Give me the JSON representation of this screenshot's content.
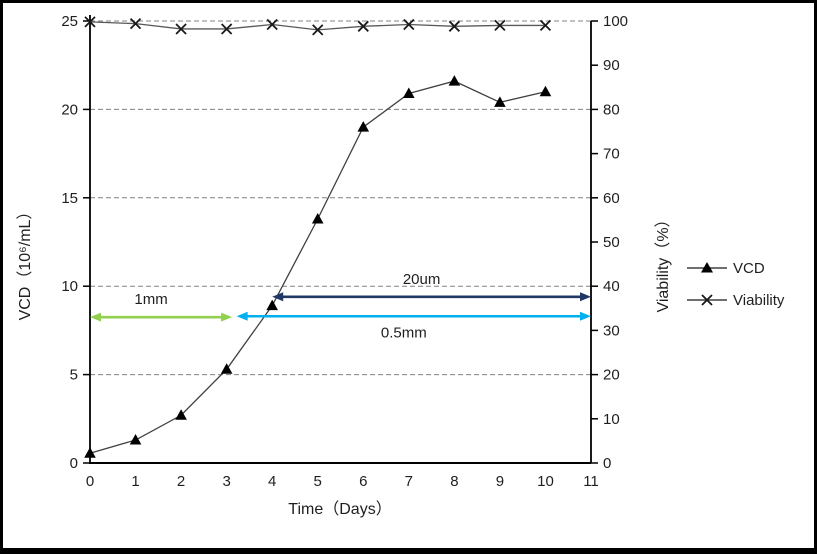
{
  "chart_data": {
    "type": "line",
    "x": [
      0,
      1,
      2,
      3,
      4,
      5,
      6,
      7,
      8,
      9,
      10
    ],
    "series": [
      {
        "name": "VCD",
        "axis": "left",
        "marker": "triangle",
        "line_color": "#404040",
        "marker_color": "#000000",
        "values": [
          0.55,
          1.3,
          2.7,
          5.3,
          8.9,
          13.8,
          19.0,
          20.9,
          21.6,
          20.4,
          21.0
        ]
      },
      {
        "name": "Viability",
        "axis": "right",
        "marker": "x",
        "line_color": "#595959",
        "marker_color": "#1a1a1a",
        "values": [
          99.8,
          99.4,
          98.2,
          98.2,
          99.2,
          98.0,
          98.8,
          99.2,
          98.8,
          99.0,
          99.0
        ]
      }
    ],
    "x_axis": {
      "label": "Time（Days）",
      "min": 0,
      "max": 11,
      "ticks": [
        0,
        1,
        2,
        3,
        4,
        5,
        6,
        7,
        8,
        9,
        10,
        11
      ]
    },
    "left_axis": {
      "label": "VCD（10⁶/mL）",
      "min": 0,
      "max": 25,
      "ticks": [
        0,
        5,
        10,
        15,
        20,
        25
      ]
    },
    "right_axis": {
      "label": "Viability（%）",
      "min": 0,
      "max": 100,
      "ticks": [
        0,
        10,
        20,
        30,
        40,
        50,
        60,
        70,
        80,
        90,
        100
      ]
    },
    "gridlines": {
      "left_values": [
        5,
        10,
        15,
        20,
        25
      ],
      "style": "dashed",
      "color": "#808080"
    },
    "legend": {
      "position": "right",
      "entries": [
        "VCD",
        "Viability"
      ]
    },
    "annotations": [
      {
        "text": "1mm",
        "color": "#92d050",
        "x_start_day": 0.0,
        "x_end_day": 3.12,
        "y_left_value": 8.25,
        "arrowheads": "both",
        "label_side": "above"
      },
      {
        "text": "20um",
        "color": "#1f3864",
        "x_start_day": 4.0,
        "x_end_day": 11.0,
        "y_left_value": 9.4,
        "arrowheads": "both",
        "label_side": "above"
      },
      {
        "text": "0.5mm",
        "color": "#00b0f0",
        "x_start_day": 3.22,
        "x_end_day": 11.0,
        "y_left_value": 8.3,
        "arrowheads": "both",
        "label_side": "below"
      }
    ]
  }
}
